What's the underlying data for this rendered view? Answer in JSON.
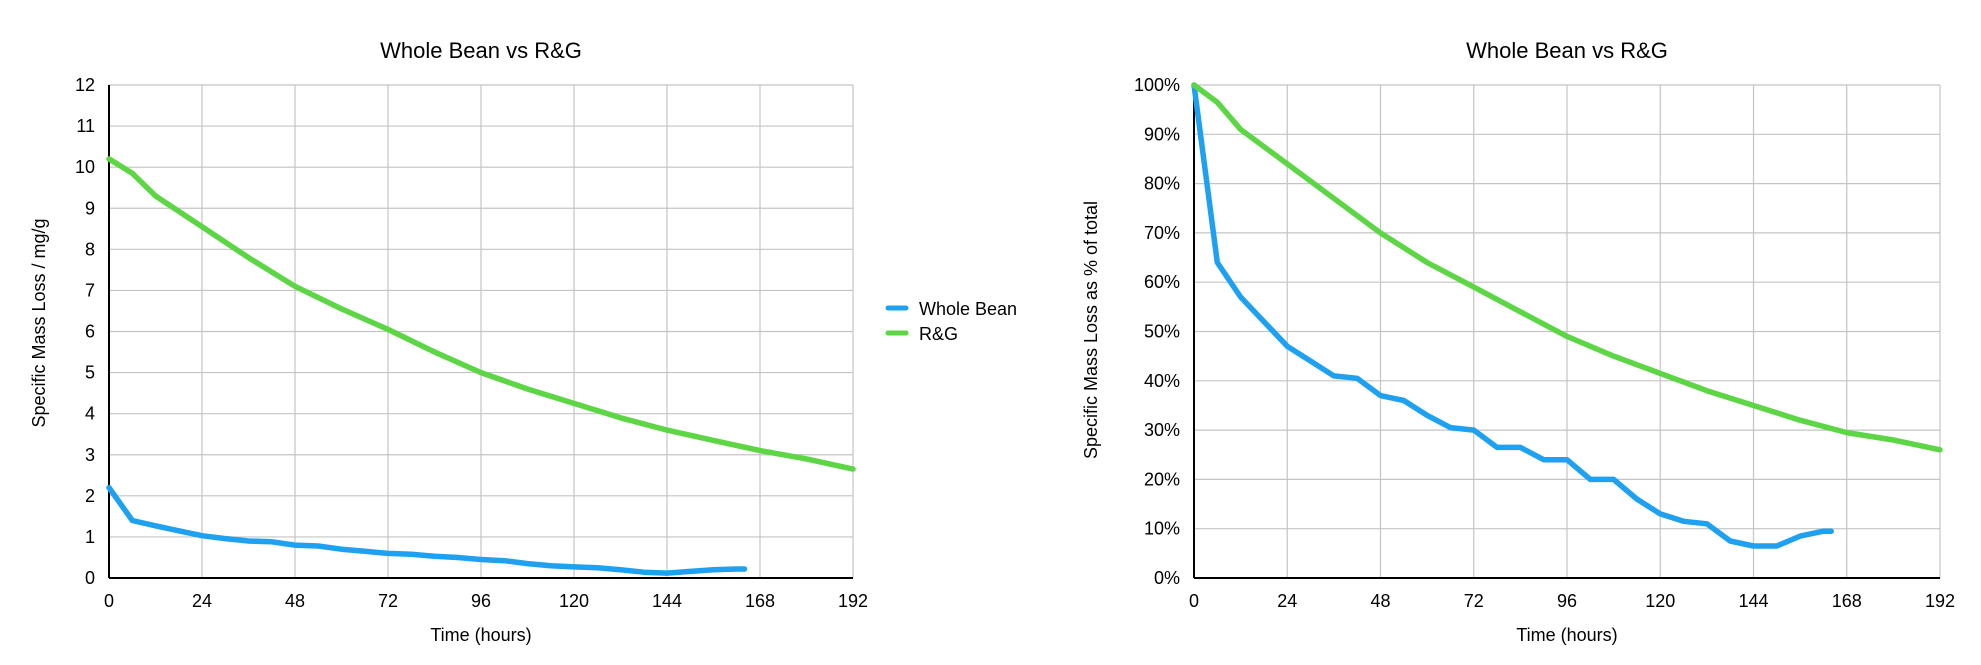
{
  "chart_data": [
    {
      "type": "line",
      "title": "Whole Bean vs R&G",
      "xlabel": "Time (hours)",
      "ylabel": "Specific Mass Loss / mg/g",
      "xlim": [
        0,
        192
      ],
      "ylim": [
        0,
        12
      ],
      "x_ticks": [
        "0",
        "24",
        "48",
        "72",
        "96",
        "120",
        "144",
        "168",
        "192"
      ],
      "y_ticks": [
        "0",
        "1",
        "2",
        "3",
        "4",
        "5",
        "6",
        "7",
        "8",
        "9",
        "10",
        "11",
        "12"
      ],
      "grid": true,
      "series": [
        {
          "name": "Whole Bean",
          "color": "#1ea1f0",
          "points": [
            [
              0,
              2.2
            ],
            [
              6,
              1.4
            ],
            [
              12,
              1.27
            ],
            [
              18,
              1.15
            ],
            [
              24,
              1.03
            ],
            [
              30,
              0.96
            ],
            [
              36,
              0.9
            ],
            [
              42,
              0.88
            ],
            [
              48,
              0.8
            ],
            [
              54,
              0.78
            ],
            [
              60,
              0.7
            ],
            [
              66,
              0.65
            ],
            [
              72,
              0.6
            ],
            [
              78,
              0.58
            ],
            [
              84,
              0.53
            ],
            [
              90,
              0.5
            ],
            [
              96,
              0.45
            ],
            [
              102,
              0.42
            ],
            [
              108,
              0.35
            ],
            [
              114,
              0.3
            ],
            [
              120,
              0.27
            ],
            [
              126,
              0.25
            ],
            [
              132,
              0.2
            ],
            [
              138,
              0.14
            ],
            [
              144,
              0.12
            ],
            [
              150,
              0.16
            ],
            [
              156,
              0.2
            ],
            [
              162,
              0.22
            ],
            [
              164,
              0.22
            ]
          ]
        },
        {
          "name": "R&G",
          "color": "#5dd646",
          "points": [
            [
              0,
              10.2
            ],
            [
              6,
              9.85
            ],
            [
              12,
              9.3
            ],
            [
              24,
              8.55
            ],
            [
              36,
              7.8
            ],
            [
              48,
              7.1
            ],
            [
              60,
              6.55
            ],
            [
              72,
              6.05
            ],
            [
              84,
              5.5
            ],
            [
              96,
              5.0
            ],
            [
              108,
              4.6
            ],
            [
              120,
              4.25
            ],
            [
              132,
              3.9
            ],
            [
              144,
              3.6
            ],
            [
              156,
              3.35
            ],
            [
              168,
              3.1
            ],
            [
              180,
              2.9
            ],
            [
              192,
              2.65
            ]
          ]
        }
      ]
    },
    {
      "type": "line",
      "title": "Whole Bean vs R&G",
      "xlabel": "Time (hours)",
      "ylabel": "Specific Mass Loss as % of total",
      "xlim": [
        0,
        192
      ],
      "ylim": [
        0,
        100
      ],
      "x_ticks": [
        "0",
        "24",
        "48",
        "72",
        "96",
        "120",
        "144",
        "168",
        "192"
      ],
      "y_ticks": [
        "0%",
        "10%",
        "20%",
        "30%",
        "40%",
        "50%",
        "60%",
        "70%",
        "80%",
        "90%",
        "100%"
      ],
      "grid": true,
      "series": [
        {
          "name": "Whole Bean",
          "color": "#1ea1f0",
          "points": [
            [
              0,
              100
            ],
            [
              6,
              64
            ],
            [
              12,
              57
            ],
            [
              18,
              52
            ],
            [
              24,
              47
            ],
            [
              30,
              44
            ],
            [
              36,
              41
            ],
            [
              42,
              40.5
            ],
            [
              48,
              37
            ],
            [
              54,
              36
            ],
            [
              60,
              33
            ],
            [
              66,
              30.5
            ],
            [
              72,
              30
            ],
            [
              78,
              26.5
            ],
            [
              84,
              26.5
            ],
            [
              90,
              24
            ],
            [
              96,
              24
            ],
            [
              102,
              20
            ],
            [
              108,
              20
            ],
            [
              114,
              16
            ],
            [
              120,
              13
            ],
            [
              126,
              11.5
            ],
            [
              132,
              11
            ],
            [
              138,
              7.5
            ],
            [
              144,
              6.5
            ],
            [
              150,
              6.5
            ],
            [
              156,
              8.5
            ],
            [
              162,
              9.5
            ],
            [
              164,
              9.5
            ]
          ]
        },
        {
          "name": "R&G",
          "color": "#5dd646",
          "points": [
            [
              0,
              100
            ],
            [
              6,
              96.5
            ],
            [
              12,
              91
            ],
            [
              24,
              84
            ],
            [
              36,
              77
            ],
            [
              48,
              70
            ],
            [
              60,
              64
            ],
            [
              72,
              59
            ],
            [
              84,
              54
            ],
            [
              96,
              49
            ],
            [
              108,
              45
            ],
            [
              120,
              41.5
            ],
            [
              132,
              38
            ],
            [
              144,
              35
            ],
            [
              156,
              32
            ],
            [
              168,
              29.5
            ],
            [
              180,
              28
            ],
            [
              192,
              26
            ]
          ]
        }
      ]
    }
  ],
  "legend": {
    "placement": "between-charts",
    "items": [
      {
        "label": "Whole Bean",
        "color": "#1ea1f0"
      },
      {
        "label": "R&G",
        "color": "#5dd646"
      }
    ]
  }
}
